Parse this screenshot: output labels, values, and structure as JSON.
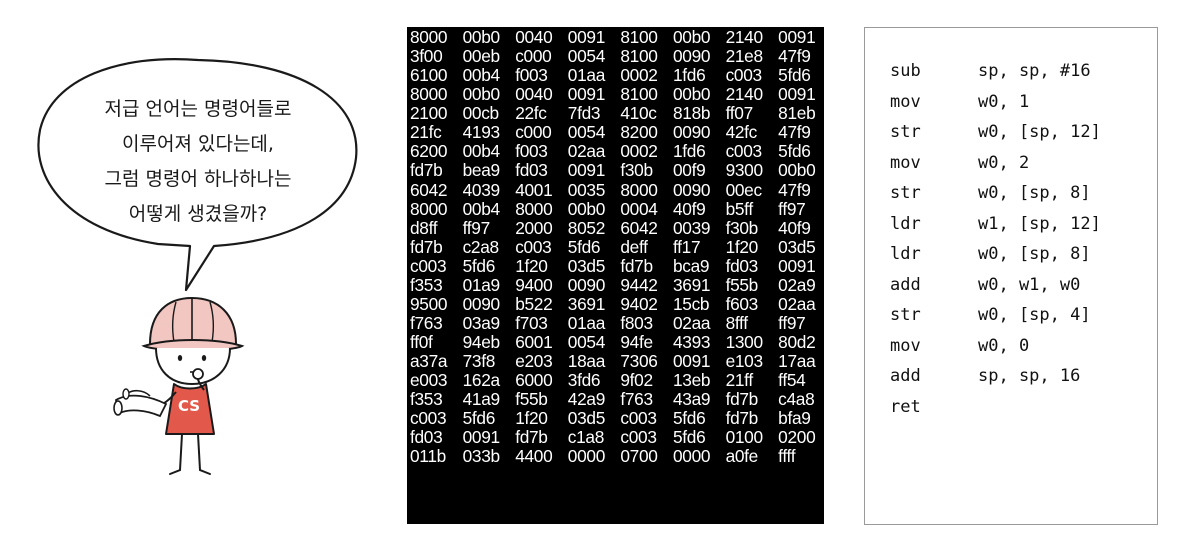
{
  "speech_bubble": {
    "lines": [
      "저급 언어는 명령어들로",
      "이루어져 있다는데,",
      "그럼 명령어 하나하나는",
      "어떻게 생겼을까?"
    ]
  },
  "character": {
    "shirt_text": "CS",
    "shirt_color": "#e2584b",
    "helmet_color": "#f3c7c1"
  },
  "hex_dump": {
    "rows": [
      [
        "8000",
        "00b0",
        "0040",
        "0091",
        "8100",
        "00b0",
        "2140",
        "0091"
      ],
      [
        "3f00",
        "00eb",
        "c000",
        "0054",
        "8100",
        "0090",
        "21e8",
        "47f9"
      ],
      [
        "6100",
        "00b4",
        "f003",
        "01aa",
        "0002",
        "1fd6",
        "c003",
        "5fd6"
      ],
      [
        "8000",
        "00b0",
        "0040",
        "0091",
        "8100",
        "00b0",
        "2140",
        "0091"
      ],
      [
        "2100",
        "00cb",
        "22fc",
        "7fd3",
        "410c",
        "818b",
        "ff07",
        "81eb"
      ],
      [
        "21fc",
        "4193",
        "c000",
        "0054",
        "8200",
        "0090",
        "42fc",
        "47f9"
      ],
      [
        "6200",
        "00b4",
        "f003",
        "02aa",
        "0002",
        "1fd6",
        "c003",
        "5fd6"
      ],
      [
        "fd7b",
        "bea9",
        "fd03",
        "0091",
        "f30b",
        "00f9",
        "9300",
        "00b0"
      ],
      [
        "6042",
        "4039",
        "4001",
        "0035",
        "8000",
        "0090",
        "00ec",
        "47f9"
      ],
      [
        "8000",
        "00b4",
        "8000",
        "00b0",
        "0004",
        "40f9",
        "b5ff",
        "ff97"
      ],
      [
        "d8ff",
        "ff97",
        "2000",
        "8052",
        "6042",
        "0039",
        "f30b",
        "40f9"
      ],
      [
        "fd7b",
        "c2a8",
        "c003",
        "5fd6",
        "deff",
        "ff17",
        "1f20",
        "03d5"
      ],
      [
        "c003",
        "5fd6",
        "1f20",
        "03d5",
        "fd7b",
        "bca9",
        "fd03",
        "0091"
      ],
      [
        "f353",
        "01a9",
        "9400",
        "0090",
        "9442",
        "3691",
        "f55b",
        "02a9"
      ],
      [
        "9500",
        "0090",
        "b522",
        "3691",
        "9402",
        "15cb",
        "f603",
        "02aa"
      ],
      [
        "f763",
        "03a9",
        "f703",
        "01aa",
        "f803",
        "02aa",
        "8fff",
        "ff97"
      ],
      [
        "ff0f",
        "94eb",
        "6001",
        "0054",
        "94fe",
        "4393",
        "1300",
        "80d2"
      ],
      [
        "a37a",
        "73f8",
        "e203",
        "18aa",
        "7306",
        "0091",
        "e103",
        "17aa"
      ],
      [
        "e003",
        "162a",
        "6000",
        "3fd6",
        "9f02",
        "13eb",
        "21ff",
        "ff54"
      ],
      [
        "f353",
        "41a9",
        "f55b",
        "42a9",
        "f763",
        "43a9",
        "fd7b",
        "c4a8"
      ],
      [
        "c003",
        "5fd6",
        "1f20",
        "03d5",
        "c003",
        "5fd6",
        "fd7b",
        "bfa9"
      ],
      [
        "fd03",
        "0091",
        "fd7b",
        "c1a8",
        "c003",
        "5fd6",
        "0100",
        "0200"
      ],
      [
        "011b",
        "033b",
        "4400",
        "0000",
        "0700",
        "0000",
        "a0fe",
        "ffff"
      ]
    ]
  },
  "assembly": {
    "lines": [
      {
        "op": "sub",
        "args": "sp, sp, #16"
      },
      {
        "op": "mov",
        "args": "w0, 1"
      },
      {
        "op": "str",
        "args": "w0, [sp, 12]"
      },
      {
        "op": "mov",
        "args": "w0, 2"
      },
      {
        "op": "str",
        "args": "w0, [sp, 8]"
      },
      {
        "op": "ldr",
        "args": "w1, [sp, 12]"
      },
      {
        "op": "ldr",
        "args": "w0, [sp, 8]"
      },
      {
        "op": "add",
        "args": "w0, w1, w0"
      },
      {
        "op": "str",
        "args": "w0, [sp, 4]"
      },
      {
        "op": "mov",
        "args": "w0, 0"
      },
      {
        "op": "add",
        "args": "sp, sp, 16"
      },
      {
        "op": "ret",
        "args": ""
      }
    ]
  }
}
